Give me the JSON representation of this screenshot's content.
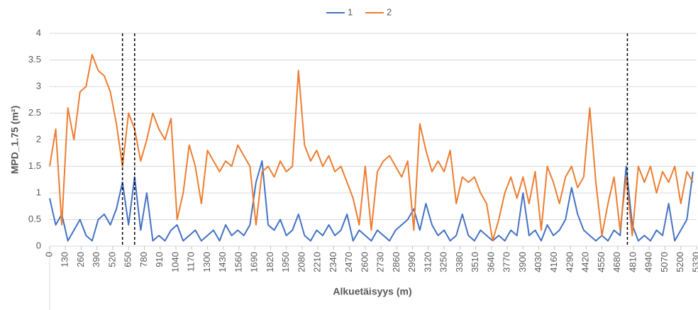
{
  "chart_data": {
    "type": "line",
    "y_label": "MPD_1.75 (m²)",
    "x_label": "Alkuetäisyys (m)",
    "x": [
      0,
      50,
      100,
      150,
      200,
      250,
      300,
      350,
      400,
      450,
      500,
      550,
      600,
      650,
      700,
      750,
      800,
      850,
      900,
      950,
      1000,
      1050,
      1100,
      1150,
      1200,
      1250,
      1300,
      1350,
      1400,
      1450,
      1500,
      1550,
      1600,
      1650,
      1700,
      1750,
      1800,
      1850,
      1900,
      1950,
      2000,
      2050,
      2100,
      2150,
      2200,
      2250,
      2300,
      2350,
      2400,
      2450,
      2500,
      2550,
      2600,
      2650,
      2700,
      2750,
      2800,
      2850,
      2900,
      2950,
      3000,
      3050,
      3100,
      3150,
      3200,
      3250,
      3300,
      3350,
      3400,
      3450,
      3500,
      3550,
      3600,
      3650,
      3700,
      3750,
      3800,
      3850,
      3900,
      3950,
      4000,
      4050,
      4100,
      4150,
      4200,
      4250,
      4300,
      4350,
      4400,
      4450,
      4500,
      4550,
      4600,
      4650,
      4700,
      4750,
      4800,
      4850,
      4900,
      4950,
      5000,
      5050,
      5100,
      5150,
      5200,
      5250,
      5300
    ],
    "series": [
      {
        "name": "1",
        "color": "#4472c4",
        "values": [
          0.9,
          0.4,
          0.6,
          0.1,
          0.3,
          0.5,
          0.2,
          0.1,
          0.5,
          0.6,
          0.4,
          0.7,
          1.2,
          0.4,
          1.3,
          0.3,
          1.0,
          0.1,
          0.2,
          0.1,
          0.3,
          0.4,
          0.1,
          0.2,
          0.3,
          0.1,
          0.2,
          0.3,
          0.1,
          0.4,
          0.2,
          0.3,
          0.2,
          0.4,
          1.2,
          1.6,
          0.4,
          0.3,
          0.5,
          0.2,
          0.3,
          0.6,
          0.2,
          0.1,
          0.3,
          0.2,
          0.4,
          0.2,
          0.3,
          0.6,
          0.1,
          0.3,
          0.2,
          0.1,
          0.3,
          0.2,
          0.1,
          0.3,
          0.4,
          0.5,
          0.7,
          0.3,
          0.8,
          0.4,
          0.2,
          0.3,
          0.1,
          0.2,
          0.6,
          0.2,
          0.1,
          0.3,
          0.2,
          0.1,
          0.2,
          0.1,
          0.3,
          0.2,
          1.0,
          0.2,
          0.3,
          0.1,
          0.4,
          0.2,
          0.3,
          0.5,
          1.1,
          0.6,
          0.3,
          0.2,
          0.1,
          0.2,
          0.1,
          0.3,
          0.2,
          1.5,
          0.4,
          0.1,
          0.2,
          0.1,
          0.3,
          0.2,
          0.8,
          0.1,
          0.3,
          0.5,
          1.4
        ]
      },
      {
        "name": "2",
        "color": "#ed7d31",
        "values": [
          1.5,
          2.2,
          0.4,
          2.6,
          2.0,
          2.9,
          3.0,
          3.6,
          3.3,
          3.2,
          2.9,
          2.3,
          1.5,
          2.5,
          2.2,
          1.6,
          2.0,
          2.5,
          2.2,
          2.0,
          2.4,
          0.5,
          1.0,
          1.9,
          1.5,
          0.8,
          1.8,
          1.6,
          1.4,
          1.6,
          1.5,
          1.9,
          1.7,
          1.5,
          0.4,
          1.4,
          1.5,
          1.3,
          1.6,
          1.4,
          1.5,
          3.3,
          1.9,
          1.6,
          1.8,
          1.5,
          1.7,
          1.4,
          1.5,
          1.2,
          0.9,
          0.4,
          1.5,
          0.3,
          1.4,
          1.6,
          1.7,
          1.5,
          1.3,
          1.6,
          0.3,
          2.3,
          1.8,
          1.4,
          1.6,
          1.4,
          1.8,
          0.8,
          1.3,
          1.2,
          1.3,
          1.0,
          0.8,
          0.1,
          0.5,
          1.0,
          1.3,
          0.9,
          1.3,
          0.8,
          1.4,
          0.3,
          1.5,
          1.2,
          0.8,
          1.3,
          1.5,
          1.1,
          1.3,
          2.6,
          1.2,
          0.2,
          0.8,
          1.3,
          0.3,
          1.3,
          0.2,
          1.5,
          1.2,
          1.5,
          1.0,
          1.4,
          1.2,
          1.5,
          0.8,
          1.4,
          1.2
        ]
      }
    ],
    "vlines": [
      600,
      700,
      4760
    ],
    "xlim": [
      0,
      5330
    ],
    "xticks": [
      0,
      130,
      260,
      390,
      520,
      650,
      780,
      910,
      1040,
      1170,
      1300,
      1430,
      1560,
      1690,
      1820,
      1950,
      2080,
      2210,
      2340,
      2470,
      2600,
      2730,
      2860,
      2990,
      3120,
      3250,
      3380,
      3510,
      3640,
      3770,
      3900,
      4030,
      4160,
      4290,
      4420,
      4550,
      4680,
      4810,
      4940,
      5070,
      5200,
      5330
    ],
    "ylim": [
      0,
      4
    ],
    "yticks": [
      0,
      0.5,
      1,
      1.5,
      2,
      2.5,
      3,
      3.5,
      4
    ],
    "grid": true,
    "legend": "top"
  }
}
